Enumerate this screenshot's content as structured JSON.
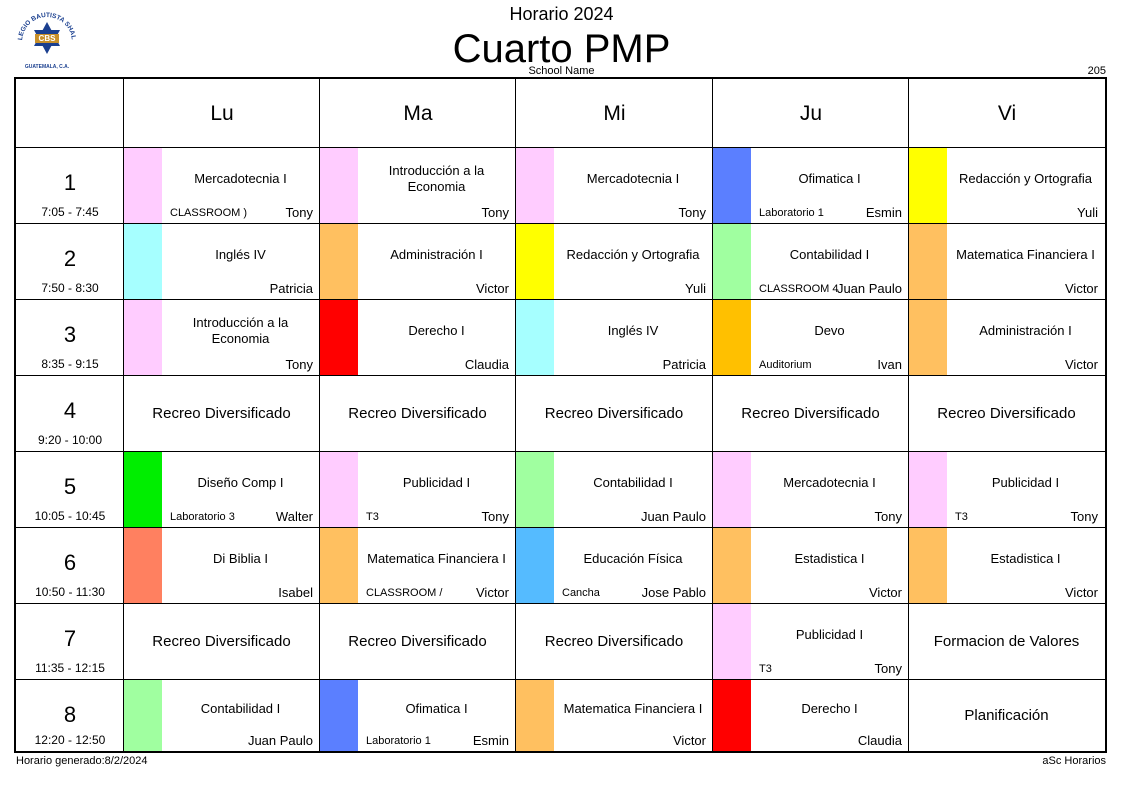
{
  "header": {
    "subtitle": "Horario 2024",
    "title": "Cuarto PMP",
    "school": "School Name",
    "room": "205",
    "logo_text_top": "COLEGIO BAUTISTA SHALOM",
    "logo_text_center": "CBS",
    "logo_text_bottom": "GUATEMALA, C.A."
  },
  "days": [
    "Lu",
    "Ma",
    "Mi",
    "Ju",
    "Vi"
  ],
  "periods": [
    {
      "num": "1",
      "time": "7:05 - 7:45"
    },
    {
      "num": "2",
      "time": "7:50 - 8:30"
    },
    {
      "num": "3",
      "time": "8:35 - 9:15"
    },
    {
      "num": "4",
      "time": "9:20 - 10:00"
    },
    {
      "num": "5",
      "time": "10:05 - 10:45"
    },
    {
      "num": "6",
      "time": "10:50 - 11:30"
    },
    {
      "num": "7",
      "time": "11:35 - 12:15"
    },
    {
      "num": "8",
      "time": "12:20 - 12:50"
    }
  ],
  "schedule": [
    [
      {
        "subject": "Mercadotecnia I",
        "teacher": "Tony",
        "room": "CLASSROOM )",
        "color": "#ffccff"
      },
      {
        "subject": "Introducción a la Economia",
        "teacher": "Tony",
        "room": "",
        "color": "#ffccff"
      },
      {
        "subject": "Mercadotecnia I",
        "teacher": "Tony",
        "room": "",
        "color": "#ffccff"
      },
      {
        "subject": "Ofimatica I",
        "teacher": "Esmin",
        "room": "Laboratorio 1",
        "color": "#5b7fff"
      },
      {
        "subject": "Redacción y Ortografia",
        "teacher": "Yuli",
        "room": "",
        "color": "#ffff00"
      }
    ],
    [
      {
        "subject": "Inglés IV",
        "teacher": "Patricia",
        "room": "",
        "color": "#a6ffff"
      },
      {
        "subject": "Administración I",
        "teacher": "Victor",
        "room": "",
        "color": "#ffc060"
      },
      {
        "subject": "Redacción y Ortografia",
        "teacher": "Yuli",
        "room": "",
        "color": "#ffff00"
      },
      {
        "subject": "Contabilidad I",
        "teacher": "Juan Paulo",
        "room": "CLASSROOM 4",
        "color": "#a0ffa0"
      },
      {
        "subject": "Matematica Financiera I",
        "teacher": "Victor",
        "room": "",
        "color": "#ffc060"
      }
    ],
    [
      {
        "subject": "Introducción a la Economia",
        "teacher": "Tony",
        "room": "",
        "color": "#ffccff"
      },
      {
        "subject": "Derecho I",
        "teacher": "Claudia",
        "room": "",
        "color": "#ff0000"
      },
      {
        "subject": "Inglés IV",
        "teacher": "Patricia",
        "room": "",
        "color": "#a6ffff"
      },
      {
        "subject": "Devo",
        "teacher": "Ivan",
        "room": "Auditorium",
        "color": "#ffc000"
      },
      {
        "subject": "Administración I",
        "teacher": "Victor",
        "room": "",
        "color": "#ffc060"
      }
    ],
    [
      {
        "recreo": "Recreo Diversificado"
      },
      {
        "recreo": "Recreo Diversificado"
      },
      {
        "recreo": "Recreo Diversificado"
      },
      {
        "recreo": "Recreo Diversificado"
      },
      {
        "recreo": "Recreo Diversificado"
      }
    ],
    [
      {
        "subject": "Diseño Comp I",
        "teacher": "Walter",
        "room": "Laboratorio 3",
        "color": "#00ee00"
      },
      {
        "subject": "Publicidad I",
        "teacher": "Tony",
        "room": "T3",
        "color": "#ffccff"
      },
      {
        "subject": "Contabilidad I",
        "teacher": "Juan Paulo",
        "room": "",
        "color": "#a0ffa0"
      },
      {
        "subject": "Mercadotecnia I",
        "teacher": "Tony",
        "room": "",
        "color": "#ffccff"
      },
      {
        "subject": "Publicidad I",
        "teacher": "Tony",
        "room": "T3",
        "color": "#ffccff"
      }
    ],
    [
      {
        "subject": "Di Biblia I",
        "teacher": "Isabel",
        "room": "",
        "color": "#ff8060"
      },
      {
        "subject": "Matematica Financiera I",
        "teacher": "Victor",
        "room": "CLASSROOM /",
        "color": "#ffc060"
      },
      {
        "subject": "Educación Física",
        "teacher": "Jose Pablo",
        "room": "Cancha",
        "color": "#55bbff"
      },
      {
        "subject": "Estadistica I",
        "teacher": "Victor",
        "room": "",
        "color": "#ffc060"
      },
      {
        "subject": "Estadistica I",
        "teacher": "Victor",
        "room": "",
        "color": "#ffc060"
      }
    ],
    [
      {
        "recreo": "Recreo Diversificado"
      },
      {
        "recreo": "Recreo Diversificado"
      },
      {
        "recreo": "Recreo Diversificado"
      },
      {
        "subject": "Publicidad I",
        "teacher": "Tony",
        "room": "T3",
        "color": "#ffccff"
      },
      {
        "recreo": "Formacion de Valores"
      }
    ],
    [
      {
        "subject": "Contabilidad I",
        "teacher": "Juan Paulo",
        "room": "",
        "color": "#a0ffa0"
      },
      {
        "subject": "Ofimatica I",
        "teacher": "Esmin",
        "room": "Laboratorio 1",
        "color": "#5b7fff"
      },
      {
        "subject": "Matematica Financiera I",
        "teacher": "Victor",
        "room": "",
        "color": "#ffc060"
      },
      {
        "subject": "Derecho I",
        "teacher": "Claudia",
        "room": "",
        "color": "#ff0000"
      },
      {
        "recreo": "Planificación"
      }
    ]
  ],
  "footer": {
    "generated": "Horario generado:8/2/2024",
    "brand": "aSc Horarios"
  }
}
